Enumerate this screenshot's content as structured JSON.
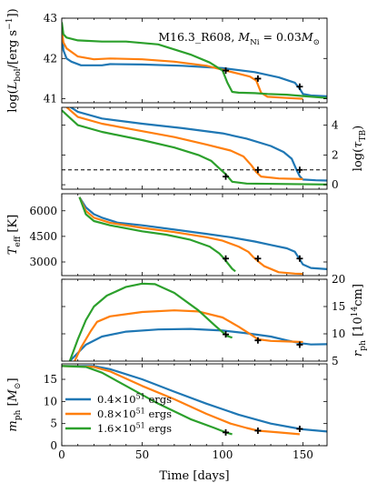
{
  "chart_data": {
    "type": "line",
    "title": "M16.3_R608, M_Ni = 0.03M_⊙",
    "title_parts": [
      "M16.3_R608, ",
      "M",
      "Ni",
      " = 0.03",
      "M",
      "⊙"
    ],
    "xlabel": "Time [days]",
    "xlim": [
      0,
      165
    ],
    "x_ticks": [
      0,
      50,
      100,
      150
    ],
    "x_tick_labels": [
      "0",
      "50",
      "100",
      "150"
    ],
    "legend_position": "lower-left (bottom panel)",
    "series": [
      {
        "name": "0.4×10^51 ergs",
        "label_parts": [
          "0.4×10",
          "51",
          " ergs"
        ],
        "color": "#1f77b4"
      },
      {
        "name": "0.8×10^51 ergs",
        "label_parts": [
          "0.8×10",
          "51",
          " ergs"
        ],
        "color": "#ff7f0e"
      },
      {
        "name": "1.6×10^51 ergs",
        "label_parts": [
          "1.6×10",
          "51",
          " ergs"
        ],
        "color": "#2ca02c"
      }
    ],
    "panels": [
      {
        "id": "lbol",
        "side": "left",
        "ylabel_parts": [
          "log(",
          "L",
          "bol",
          "/[erg s",
          "−1",
          "])"
        ],
        "ylim": [
          40.9,
          43.0
        ],
        "y_ticks": [
          41,
          42,
          43
        ],
        "y_tick_labels": [
          "41",
          "42",
          "43"
        ],
        "series_data": [
          [
            [
              0,
              42.75
            ],
            [
              1,
              42.2
            ],
            [
              3,
              42.0
            ],
            [
              6,
              41.92
            ],
            [
              12,
              41.83
            ],
            [
              25,
              41.83
            ],
            [
              30,
              41.86
            ],
            [
              50,
              41.85
            ],
            [
              75,
              41.82
            ],
            [
              100,
              41.76
            ],
            [
              120,
              41.66
            ],
            [
              135,
              41.53
            ],
            [
              145,
              41.4
            ],
            [
              148,
              41.25
            ],
            [
              150,
              41.12
            ],
            [
              155,
              41.08
            ],
            [
              165,
              41.06
            ]
          ],
          [
            [
              0,
              42.7
            ],
            [
              1,
              42.4
            ],
            [
              3,
              42.25
            ],
            [
              10,
              42.05
            ],
            [
              20,
              41.98
            ],
            [
              30,
              42.0
            ],
            [
              50,
              41.98
            ],
            [
              70,
              41.92
            ],
            [
              90,
              41.82
            ],
            [
              100,
              41.72
            ],
            [
              110,
              41.62
            ],
            [
              117,
              41.55
            ],
            [
              121,
              41.45
            ],
            [
              124,
              41.15
            ],
            [
              128,
              41.05
            ],
            [
              140,
              41.02
            ],
            [
              150,
              41.0
            ]
          ],
          [
            [
              0,
              42.9
            ],
            [
              1,
              42.6
            ],
            [
              3,
              42.52
            ],
            [
              10,
              42.45
            ],
            [
              25,
              42.42
            ],
            [
              40,
              42.42
            ],
            [
              60,
              42.35
            ],
            [
              80,
              42.1
            ],
            [
              92,
              41.9
            ],
            [
              100,
              41.7
            ],
            [
              103,
              41.4
            ],
            [
              106,
              41.17
            ],
            [
              110,
              41.15
            ],
            [
              120,
              41.14
            ],
            [
              128,
              41.12
            ],
            [
              140,
              41.1
            ],
            [
              152,
              41.06
            ],
            [
              165,
              41.02
            ]
          ]
        ],
        "markers": [
          [
            148,
            41.3
          ],
          [
            122,
            41.5
          ],
          [
            102,
            41.7
          ]
        ],
        "ref_line": null
      },
      {
        "id": "tau",
        "side": "right",
        "ylabel_parts": [
          "log(",
          "τ",
          "TB",
          ")"
        ],
        "ylim": [
          -0.3,
          5.2
        ],
        "y_ticks": [
          0,
          2,
          4
        ],
        "y_tick_labels": [
          "0",
          "2",
          "4"
        ],
        "series_data": [
          [
            [
              0,
              5.6
            ],
            [
              10,
              4.9
            ],
            [
              25,
              4.45
            ],
            [
              50,
              4.1
            ],
            [
              75,
              3.8
            ],
            [
              100,
              3.45
            ],
            [
              115,
              3.1
            ],
            [
              130,
              2.6
            ],
            [
              138,
              2.2
            ],
            [
              143,
              1.75
            ],
            [
              146,
              1.0
            ],
            [
              148,
              0.58
            ],
            [
              150,
              0.35
            ],
            [
              158,
              0.3
            ],
            [
              165,
              0.28
            ]
          ],
          [
            [
              0,
              5.5
            ],
            [
              10,
              4.55
            ],
            [
              25,
              4.1
            ],
            [
              50,
              3.6
            ],
            [
              70,
              3.2
            ],
            [
              90,
              2.7
            ],
            [
              105,
              2.3
            ],
            [
              113,
              1.9
            ],
            [
              118,
              1.3
            ],
            [
              121,
              0.85
            ],
            [
              124,
              0.55
            ],
            [
              135,
              0.42
            ],
            [
              150,
              0.38
            ]
          ],
          [
            [
              0,
              5.0
            ],
            [
              10,
              4.0
            ],
            [
              25,
              3.55
            ],
            [
              50,
              3.0
            ],
            [
              70,
              2.5
            ],
            [
              85,
              2.0
            ],
            [
              93,
              1.6
            ],
            [
              98,
              1.1
            ],
            [
              102,
              0.7
            ],
            [
              106,
              0.2
            ],
            [
              115,
              0.08
            ],
            [
              140,
              0.05
            ],
            [
              165,
              0.02
            ]
          ]
        ],
        "markers": [
          [
            148,
            1.0
          ],
          [
            122,
            1.0
          ],
          [
            102,
            0.55
          ]
        ],
        "ref_line": 1.0
      },
      {
        "id": "teff",
        "side": "left",
        "ylabel_parts": [
          "T",
          "eff",
          " [K]"
        ],
        "ylim": [
          2200,
          7000
        ],
        "y_ticks": [
          3000,
          4500,
          6000
        ],
        "y_tick_labels": [
          "3000",
          "4500",
          "6000"
        ],
        "series_data": [
          [
            [
              11,
              6800
            ],
            [
              15,
              6200
            ],
            [
              20,
              5800
            ],
            [
              25,
              5600
            ],
            [
              35,
              5300
            ],
            [
              50,
              5150
            ],
            [
              70,
              4900
            ],
            [
              90,
              4650
            ],
            [
              105,
              4450
            ],
            [
              120,
              4200
            ],
            [
              130,
              4000
            ],
            [
              140,
              3800
            ],
            [
              145,
              3600
            ],
            [
              148,
              3150
            ],
            [
              150,
              2850
            ],
            [
              155,
              2650
            ],
            [
              165,
              2580
            ]
          ],
          [
            [
              11,
              6800
            ],
            [
              15,
              6000
            ],
            [
              20,
              5600
            ],
            [
              30,
              5300
            ],
            [
              50,
              5000
            ],
            [
              70,
              4750
            ],
            [
              90,
              4450
            ],
            [
              100,
              4250
            ],
            [
              110,
              3900
            ],
            [
              116,
              3600
            ],
            [
              119,
              3300
            ],
            [
              122,
              3050
            ],
            [
              126,
              2750
            ],
            [
              135,
              2400
            ],
            [
              145,
              2320
            ],
            [
              150,
              2300
            ]
          ],
          [
            [
              11,
              6800
            ],
            [
              15,
              5800
            ],
            [
              20,
              5400
            ],
            [
              30,
              5150
            ],
            [
              50,
              4800
            ],
            [
              65,
              4600
            ],
            [
              80,
              4300
            ],
            [
              92,
              3900
            ],
            [
              98,
              3500
            ],
            [
              101,
              3200
            ],
            [
              103,
              2950
            ],
            [
              106,
              2600
            ],
            [
              108,
              2450
            ]
          ]
        ],
        "markers": [
          [
            148,
            3200
          ],
          [
            122,
            3200
          ],
          [
            102,
            3200
          ]
        ],
        "ref_line": null
      },
      {
        "id": "rph",
        "side": "right",
        "ylabel_parts": [
          "r",
          "ph",
          " [10",
          "14",
          "cm]"
        ],
        "ylim": [
          5,
          20
        ],
        "y_ticks": [
          5,
          10,
          15,
          20
        ],
        "y_tick_labels": [
          "5",
          "10",
          "15",
          "20"
        ],
        "series_data": [
          [
            [
              5,
              5
            ],
            [
              10,
              6.5
            ],
            [
              15,
              8.0
            ],
            [
              25,
              9.5
            ],
            [
              40,
              10.4
            ],
            [
              60,
              10.8
            ],
            [
              80,
              10.9
            ],
            [
              100,
              10.6
            ],
            [
              115,
              10.1
            ],
            [
              130,
              9.5
            ],
            [
              140,
              8.8
            ],
            [
              148,
              8.3
            ],
            [
              155,
              8.05
            ],
            [
              165,
              8.1
            ]
          ],
          [
            [
              8,
              5
            ],
            [
              12,
              7.5
            ],
            [
              18,
              10.5
            ],
            [
              22,
              12.2
            ],
            [
              30,
              13.2
            ],
            [
              50,
              14.0
            ],
            [
              70,
              14.3
            ],
            [
              85,
              14.1
            ],
            [
              100,
              13.0
            ],
            [
              110,
              11.3
            ],
            [
              118,
              9.8
            ],
            [
              122,
              9.0
            ],
            [
              130,
              8.7
            ],
            [
              140,
              8.6
            ],
            [
              150,
              8.5
            ]
          ],
          [
            [
              5,
              5
            ],
            [
              10,
              9.0
            ],
            [
              15,
              12.5
            ],
            [
              20,
              15.0
            ],
            [
              28,
              17.0
            ],
            [
              40,
              18.6
            ],
            [
              50,
              19.2
            ],
            [
              58,
              19.1
            ],
            [
              70,
              17.5
            ],
            [
              85,
              14.3
            ],
            [
              95,
              11.6
            ],
            [
              100,
              10.3
            ],
            [
              103,
              9.6
            ],
            [
              106,
              9.3
            ]
          ]
        ],
        "markers": [
          [
            148,
            8.0
          ],
          [
            122,
            8.8
          ],
          [
            102,
            9.9
          ]
        ],
        "ref_line": null
      },
      {
        "id": "mph",
        "side": "left",
        "ylabel_parts": [
          "m",
          "ph",
          " [",
          "M",
          "⊙",
          "]"
        ],
        "ylim": [
          0,
          18.5
        ],
        "y_ticks": [
          0,
          5,
          10,
          15
        ],
        "y_tick_labels": [
          "0",
          "5",
          "10",
          "15"
        ],
        "series_data": [
          [
            [
              0,
              18.0
            ],
            [
              20,
              18.0
            ],
            [
              30,
              17.3
            ],
            [
              50,
              15.0
            ],
            [
              70,
              12.2
            ],
            [
              90,
              9.5
            ],
            [
              110,
              7.0
            ],
            [
              130,
              5.0
            ],
            [
              145,
              4.0
            ],
            [
              150,
              3.7
            ],
            [
              165,
              3.2
            ]
          ],
          [
            [
              0,
              18.0
            ],
            [
              20,
              17.8
            ],
            [
              30,
              16.8
            ],
            [
              50,
              13.5
            ],
            [
              70,
              10.5
            ],
            [
              90,
              7.2
            ],
            [
              105,
              5.0
            ],
            [
              115,
              4.0
            ],
            [
              122,
              3.4
            ],
            [
              135,
              3.0
            ],
            [
              148,
              2.6
            ]
          ],
          [
            [
              0,
              18.0
            ],
            [
              15,
              17.8
            ],
            [
              25,
              16.5
            ],
            [
              40,
              13.5
            ],
            [
              60,
              9.5
            ],
            [
              80,
              6.0
            ],
            [
              95,
              4.0
            ],
            [
              102,
              3.0
            ],
            [
              106,
              2.6
            ]
          ]
        ],
        "markers": [
          [
            148,
            3.8
          ],
          [
            122,
            3.4
          ],
          [
            102,
            3.0
          ]
        ],
        "ref_line": null
      }
    ]
  }
}
